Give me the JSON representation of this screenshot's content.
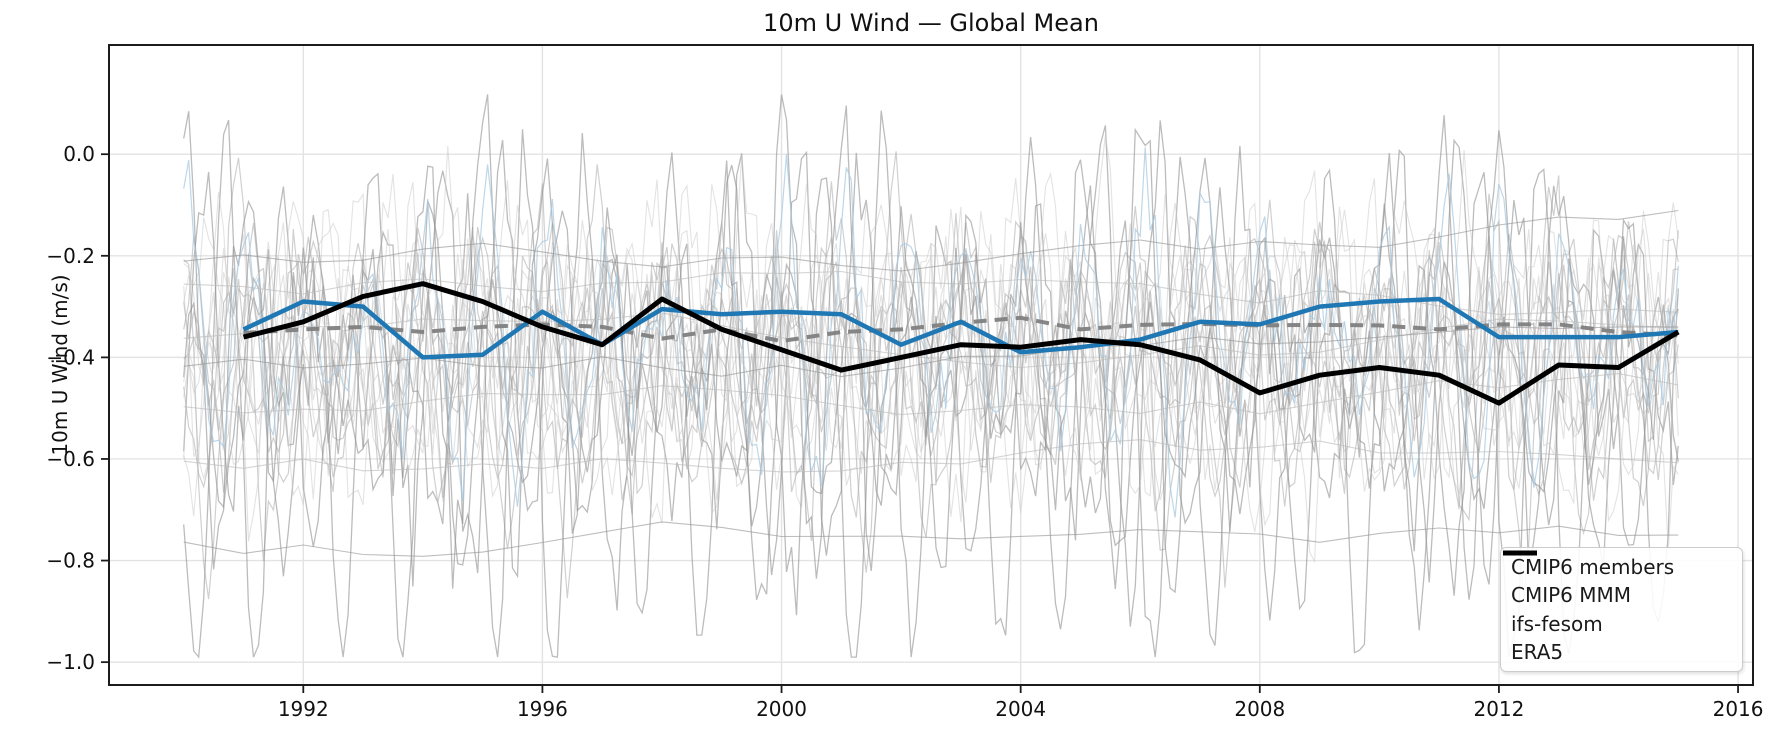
{
  "chart_data": {
    "type": "line",
    "title": "10m U Wind — Global Mean",
    "xlabel": "",
    "ylabel": "10m U Wind (m/s)",
    "xlim": [
      1988.75,
      2016.25
    ],
    "ylim": [
      -1.045,
      0.215
    ],
    "grid": true,
    "legend_position": "lower right",
    "xticks": {
      "values": [
        1992,
        1996,
        2000,
        2004,
        2008,
        2012,
        2016
      ],
      "labels": [
        "1992",
        "1996",
        "2000",
        "2004",
        "2008",
        "2012",
        "2016"
      ]
    },
    "yticks": {
      "values": [
        0.0,
        -0.2,
        -0.4,
        -0.6,
        -0.8,
        -1.0
      ],
      "labels": [
        "0.0",
        "−0.2",
        "−0.4",
        "−0.6",
        "−0.8",
        "−1.0"
      ]
    },
    "years": [
      1991,
      1992,
      1993,
      1994,
      1995,
      1996,
      1997,
      1998,
      1999,
      2000,
      2001,
      2002,
      2003,
      2004,
      2005,
      2006,
      2007,
      2008,
      2009,
      2010,
      2011,
      2012,
      2013,
      2014,
      2015
    ],
    "series": [
      {
        "name": "CMIP6 members",
        "role": "ensemble",
        "color_light": "#c8c8c8",
        "color_mid": "#aaaaaa",
        "color_dark": "#8f8f8f",
        "color_blue_member": "#a7c9e2",
        "monthly_members": 16,
        "annual_members": 7,
        "seed": 20,
        "x_span": [
          1990,
          2015
        ],
        "approx_value_range": [
          -0.99,
          0.14
        ],
        "approx_center": -0.37
      },
      {
        "name": "CMIP6 MMM",
        "role": "multi_model_mean",
        "style": "dashed",
        "color": "#7f7f7f",
        "width": 4,
        "values": [
          -0.352,
          -0.345,
          -0.34,
          -0.35,
          -0.34,
          -0.335,
          -0.34,
          -0.363,
          -0.345,
          -0.368,
          -0.35,
          -0.345,
          -0.332,
          -0.322,
          -0.345,
          -0.336,
          -0.334,
          -0.337,
          -0.336,
          -0.337,
          -0.345,
          -0.335,
          -0.335,
          -0.35,
          -0.357
        ]
      },
      {
        "name": "ifs-fesom",
        "role": "model",
        "style": "solid",
        "color": "#1f77b4",
        "width": 4.5,
        "values": [
          -0.345,
          -0.29,
          -0.3,
          -0.4,
          -0.395,
          -0.31,
          -0.375,
          -0.305,
          -0.315,
          -0.31,
          -0.315,
          -0.375,
          -0.33,
          -0.39,
          -0.38,
          -0.365,
          -0.33,
          -0.335,
          -0.3,
          -0.29,
          -0.285,
          -0.36,
          -0.36,
          -0.36,
          -0.35
        ]
      },
      {
        "name": "ERA5",
        "role": "reanalysis",
        "style": "solid",
        "color": "#000000",
        "width": 5,
        "values": [
          -0.36,
          -0.33,
          -0.28,
          -0.255,
          -0.29,
          -0.34,
          -0.375,
          -0.285,
          -0.345,
          -0.385,
          -0.425,
          -0.4,
          -0.375,
          -0.38,
          -0.365,
          -0.375,
          -0.405,
          -0.47,
          -0.435,
          -0.42,
          -0.435,
          -0.49,
          -0.415,
          -0.42,
          -0.35
        ]
      }
    ]
  }
}
